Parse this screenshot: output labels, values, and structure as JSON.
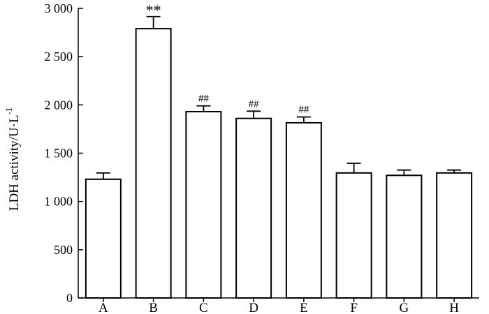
{
  "chart_data": {
    "type": "bar",
    "ylabel": "LDH activity/U·L",
    "ylabel_superscript": "-1",
    "xlabel": "",
    "ylim": [
      0,
      3000
    ],
    "yticks": [
      0,
      500,
      1000,
      1500,
      2000,
      2500,
      3000
    ],
    "ytick_labels": [
      "0",
      "500",
      "1 000",
      "1 500",
      "2 000",
      "2 500",
      "3 000"
    ],
    "grid": false,
    "legend": "none",
    "bar_fill": "#ffffff",
    "bar_stroke": "#000000",
    "categories": [
      "A",
      "B",
      "C",
      "D",
      "E",
      "F",
      "G",
      "H"
    ],
    "values": [
      1230,
      2790,
      1930,
      1860,
      1815,
      1295,
      1270,
      1295
    ],
    "errors": [
      65,
      125,
      60,
      75,
      60,
      100,
      55,
      30
    ],
    "annotations": [
      "",
      "**",
      "##",
      "##",
      "##",
      "",
      "",
      ""
    ]
  }
}
